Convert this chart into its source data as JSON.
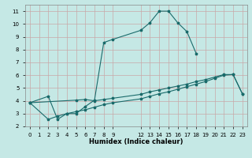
{
  "xlabel": "Humidex (Indice chaleur)",
  "bg_color": "#c5e8e5",
  "grid_color": "#c8a8a8",
  "line_color": "#1a6b6b",
  "xlim": [
    -0.5,
    23.5
  ],
  "ylim": [
    2,
    11.5
  ],
  "xticks": [
    0,
    1,
    2,
    3,
    4,
    5,
    6,
    7,
    8,
    9,
    12,
    13,
    14,
    15,
    16,
    17,
    18,
    19,
    20,
    21,
    22,
    23
  ],
  "yticks": [
    2,
    3,
    4,
    5,
    6,
    7,
    8,
    9,
    10,
    11
  ],
  "line1_x": [
    0,
    2,
    3,
    4,
    5,
    6,
    7,
    8,
    9,
    12,
    13,
    14,
    15,
    16,
    17,
    18
  ],
  "line1_y": [
    3.85,
    4.35,
    2.55,
    3.0,
    3.0,
    3.55,
    4.05,
    8.55,
    8.8,
    9.5,
    10.1,
    11.0,
    11.0,
    10.1,
    9.4,
    7.7
  ],
  "line2_x": [
    0,
    2,
    3,
    4,
    5,
    6,
    7,
    8,
    9,
    12,
    13,
    14,
    15,
    16,
    17,
    18,
    19,
    20,
    21,
    22,
    23
  ],
  "line2_y": [
    3.85,
    2.55,
    2.8,
    3.0,
    3.15,
    3.3,
    3.5,
    3.7,
    3.85,
    4.15,
    4.35,
    4.55,
    4.7,
    4.9,
    5.1,
    5.3,
    5.5,
    5.75,
    6.0,
    6.05,
    4.55
  ],
  "line3_x": [
    0,
    5,
    6,
    7,
    8,
    9,
    12,
    13,
    14,
    15,
    16,
    17,
    18,
    19,
    20,
    21,
    22,
    23
  ],
  "line3_y": [
    3.85,
    4.05,
    4.1,
    4.0,
    4.1,
    4.2,
    4.5,
    4.7,
    4.85,
    5.0,
    5.15,
    5.3,
    5.5,
    5.65,
    5.85,
    6.05,
    6.05,
    4.55
  ]
}
